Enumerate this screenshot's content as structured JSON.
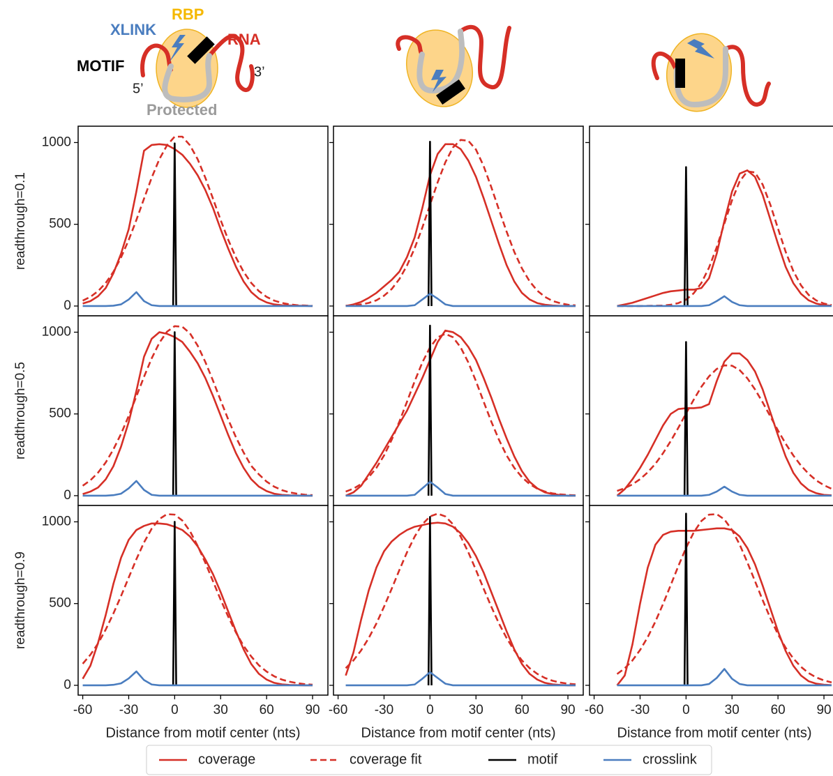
{
  "schematic": {
    "xlink": "XLINK",
    "rbp": "RBP",
    "rna": "RNA",
    "motif": "MOTIF",
    "five": "5’",
    "three": "3’",
    "protected": "Protected"
  },
  "chart_data": {
    "type": "line",
    "xlabel": "Distance from motif center (nts)",
    "row_labels": [
      "readthrough=0.1",
      "readthrough=0.5",
      "readthrough=0.9"
    ],
    "xlim": [
      -63,
      100
    ],
    "xticks": [
      -60,
      -30,
      0,
      30,
      60,
      90
    ],
    "ylim": [
      -60,
      1100
    ],
    "yticks": [
      0,
      500,
      1000
    ],
    "x": [
      -65,
      -60,
      -55,
      -50,
      -45,
      -40,
      -35,
      -30,
      -25,
      -20,
      -15,
      -10,
      -5,
      0,
      5,
      10,
      15,
      20,
      25,
      30,
      35,
      40,
      45,
      50,
      55,
      60,
      65,
      70,
      75,
      80,
      85,
      90,
      95
    ],
    "series": [
      {
        "name": "coverage",
        "color": "#d62f26"
      },
      {
        "name": "coverage fit",
        "color": "#d62f26",
        "linestyle": "dashed"
      },
      {
        "name": "motif",
        "color": "#000000",
        "x": [
          -1,
          0,
          1
        ]
      },
      {
        "name": "crosslink",
        "color": "#4a7dbf"
      }
    ],
    "panels": [
      {
        "values": [
          [
            null,
            15,
            30,
            60,
            110,
            200,
            320,
            470,
            700,
            950,
            985,
            990,
            985,
            960,
            925,
            870,
            800,
            710,
            600,
            470,
            350,
            240,
            150,
            85,
            45,
            22,
            10,
            5,
            3,
            2,
            1,
            0,
            null
          ],
          [
            null,
            33,
            56,
            91,
            141,
            209,
            297,
            404,
            526,
            657,
            785,
            898,
            983,
            1036,
            1036,
            983,
            898,
            785,
            657,
            526,
            404,
            297,
            209,
            141,
            91,
            56,
            33,
            19,
            10,
            5,
            3,
            1,
            null
          ],
          [
            0,
            995,
            0
          ],
          [
            null,
            0,
            0,
            0,
            0,
            2,
            10,
            40,
            85,
            30,
            5,
            0,
            0,
            0,
            0,
            0,
            0,
            0,
            0,
            0,
            0,
            0,
            0,
            0,
            0,
            0,
            0,
            0,
            0,
            0,
            0,
            0,
            null
          ]
        ]
      },
      {
        "values": [
          [
            null,
            null,
            0,
            10,
            25,
            50,
            80,
            120,
            160,
            210,
            300,
            420,
            600,
            800,
            930,
            990,
            990,
            960,
            890,
            790,
            660,
            520,
            380,
            250,
            150,
            80,
            40,
            18,
            8,
            3,
            1,
            0,
            0
          ],
          [
            null,
            null,
            2,
            5,
            10,
            19,
            35,
            63,
            104,
            165,
            248,
            354,
            480,
            619,
            757,
            879,
            970,
            1016,
            1011,
            957,
            856,
            727,
            589,
            455,
            331,
            230,
            151,
            94,
            56,
            31,
            17,
            8,
            4
          ],
          [
            0,
            1005,
            0
          ],
          [
            null,
            null,
            0,
            0,
            0,
            0,
            0,
            0,
            0,
            0,
            0,
            5,
            40,
            75,
            45,
            10,
            0,
            0,
            0,
            0,
            0,
            0,
            0,
            0,
            0,
            0,
            0,
            0,
            0,
            0,
            0,
            0,
            0
          ]
        ]
      },
      {
        "values": [
          [
            null,
            null,
            null,
            null,
            0,
            10,
            20,
            35,
            50,
            65,
            80,
            90,
            95,
            100,
            100,
            110,
            170,
            320,
            520,
            700,
            810,
            830,
            790,
            680,
            530,
            380,
            240,
            140,
            75,
            35,
            15,
            5,
            2
          ],
          [
            null,
            null,
            null,
            null,
            0,
            0,
            0,
            0,
            1,
            2,
            3,
            8,
            18,
            39,
            78,
            141,
            235,
            359,
            504,
            647,
            763,
            824,
            817,
            743,
            620,
            474,
            332,
            214,
            127,
            68,
            34,
            15,
            6
          ],
          [
            0,
            850,
            0
          ],
          [
            null,
            null,
            null,
            null,
            0,
            0,
            0,
            0,
            0,
            0,
            0,
            0,
            0,
            0,
            0,
            0,
            5,
            30,
            60,
            25,
            5,
            0,
            0,
            0,
            0,
            0,
            0,
            0,
            0,
            0,
            0,
            0,
            0
          ]
        ]
      },
      {
        "values": [
          [
            null,
            10,
            25,
            50,
            100,
            180,
            300,
            450,
            640,
            850,
            960,
            1000,
            990,
            970,
            940,
            880,
            810,
            720,
            610,
            490,
            370,
            260,
            170,
            100,
            55,
            28,
            12,
            5,
            2,
            1,
            0,
            0,
            null
          ],
          [
            null,
            61,
            94,
            141,
            203,
            283,
            378,
            488,
            607,
            727,
            840,
            935,
            1003,
            1037,
            1033,
            993,
            918,
            818,
            704,
            583,
            465,
            357,
            264,
            182,
            130,
            86,
            55,
            34,
            20,
            12,
            6,
            3,
            null
          ],
          [
            0,
            1000,
            0
          ],
          [
            null,
            0,
            0,
            0,
            0,
            3,
            12,
            45,
            90,
            35,
            5,
            0,
            0,
            0,
            0,
            0,
            0,
            0,
            0,
            0,
            0,
            0,
            0,
            0,
            0,
            0,
            0,
            0,
            0,
            0,
            0,
            0,
            null
          ]
        ]
      },
      {
        "values": [
          [
            null,
            null,
            0,
            20,
            60,
            130,
            200,
            280,
            360,
            440,
            520,
            620,
            720,
            830,
            940,
            1010,
            1000,
            970,
            910,
            830,
            720,
            600,
            470,
            350,
            240,
            150,
            85,
            45,
            20,
            10,
            4,
            0,
            0
          ],
          [
            null,
            null,
            25,
            43,
            71,
            113,
            170,
            246,
            342,
            453,
            575,
            700,
            815,
            907,
            969,
            990,
            969,
            907,
            815,
            700,
            575,
            453,
            342,
            246,
            170,
            113,
            71,
            43,
            25,
            14,
            8,
            4,
            2
          ],
          [
            0,
            1040,
            0
          ],
          [
            null,
            null,
            0,
            0,
            0,
            0,
            0,
            0,
            0,
            0,
            0,
            5,
            45,
            85,
            50,
            10,
            0,
            0,
            0,
            0,
            0,
            0,
            0,
            0,
            0,
            0,
            0,
            0,
            0,
            0,
            0,
            0,
            0
          ]
        ]
      },
      {
        "values": [
          [
            null,
            null,
            null,
            null,
            0,
            40,
            100,
            170,
            250,
            340,
            430,
            500,
            530,
            535,
            535,
            540,
            560,
            700,
            820,
            870,
            870,
            830,
            760,
            650,
            510,
            370,
            240,
            140,
            75,
            35,
            15,
            5,
            2
          ],
          [
            null,
            null,
            null,
            null,
            29,
            46,
            69,
            101,
            143,
            195,
            260,
            334,
            416,
            503,
            587,
            666,
            730,
            775,
            797,
            795,
            768,
            718,
            650,
            571,
            485,
            399,
            318,
            246,
            184,
            134,
            93,
            64,
            42
          ],
          [
            0,
            940,
            0
          ],
          [
            null,
            null,
            null,
            null,
            0,
            0,
            0,
            0,
            0,
            0,
            0,
            0,
            0,
            0,
            0,
            0,
            5,
            25,
            55,
            25,
            5,
            0,
            0,
            0,
            0,
            0,
            0,
            0,
            0,
            0,
            0,
            0,
            0
          ]
        ]
      },
      {
        "values": [
          [
            null,
            40,
            120,
            260,
            430,
            620,
            780,
            890,
            950,
            975,
            990,
            990,
            985,
            970,
            950,
            910,
            850,
            770,
            680,
            570,
            450,
            330,
            220,
            130,
            70,
            35,
            15,
            6,
            2,
            1,
            0,
            0,
            null
          ],
          [
            null,
            132,
            187,
            256,
            341,
            439,
            546,
            659,
            771,
            874,
            958,
            1017,
            1047,
            1044,
            1008,
            943,
            853,
            750,
            637,
            524,
            419,
            323,
            241,
            176,
            122,
            84,
            55,
            35,
            22,
            13,
            7,
            4,
            null
          ],
          [
            0,
            1000,
            0
          ],
          [
            null,
            0,
            0,
            0,
            0,
            3,
            12,
            42,
            85,
            32,
            5,
            0,
            0,
            0,
            0,
            0,
            0,
            0,
            0,
            0,
            0,
            0,
            0,
            0,
            0,
            0,
            0,
            0,
            0,
            0,
            0,
            0,
            null
          ]
        ]
      },
      {
        "values": [
          [
            null,
            null,
            60,
            200,
            400,
            580,
            720,
            820,
            880,
            920,
            950,
            970,
            980,
            990,
            995,
            990,
            970,
            930,
            870,
            790,
            690,
            570,
            450,
            330,
            220,
            130,
            70,
            35,
            15,
            6,
            2,
            0,
            0
          ],
          [
            null,
            null,
            105,
            152,
            213,
            289,
            378,
            481,
            591,
            705,
            814,
            910,
            985,
            1033,
            1050,
            1033,
            985,
            910,
            814,
            705,
            591,
            481,
            378,
            289,
            213,
            152,
            105,
            70,
            45,
            28,
            17,
            10,
            6
          ],
          [
            0,
            1030,
            0
          ],
          [
            null,
            null,
            0,
            0,
            0,
            0,
            0,
            0,
            0,
            0,
            0,
            5,
            40,
            80,
            45,
            10,
            0,
            0,
            0,
            0,
            0,
            0,
            0,
            0,
            0,
            0,
            0,
            0,
            0,
            0,
            0,
            0,
            0
          ]
        ]
      },
      {
        "values": [
          [
            null,
            null,
            null,
            null,
            0,
            60,
            250,
            500,
            720,
            860,
            920,
            940,
            945,
            945,
            945,
            950,
            955,
            960,
            960,
            950,
            910,
            840,
            740,
            610,
            470,
            330,
            210,
            120,
            60,
            25,
            10,
            4,
            1
          ],
          [
            null,
            null,
            null,
            null,
            69,
            104,
            152,
            216,
            295,
            390,
            498,
            613,
            730,
            841,
            935,
            1005,
            1044,
            1047,
            1015,
            950,
            861,
            752,
            637,
            521,
            411,
            312,
            230,
            164,
            113,
            75,
            48,
            30,
            18
          ],
          [
            0,
            1050,
            0
          ],
          [
            null,
            null,
            null,
            null,
            0,
            0,
            0,
            0,
            0,
            0,
            0,
            0,
            0,
            0,
            0,
            0,
            8,
            45,
            100,
            40,
            8,
            0,
            0,
            0,
            0,
            0,
            0,
            0,
            0,
            0,
            0,
            0,
            0
          ]
        ]
      }
    ]
  }
}
